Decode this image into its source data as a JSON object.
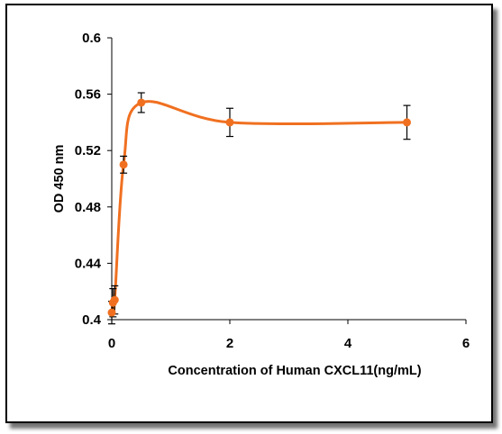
{
  "chart_data": {
    "type": "line",
    "title": "",
    "xlabel": "Concentration of Human CXCL11(ng/mL)",
    "ylabel": "OD 450 nm",
    "xlim": [
      0,
      6
    ],
    "ylim": [
      0.4,
      0.6
    ],
    "x_ticks": [
      "0",
      "2",
      "4",
      "6"
    ],
    "y_ticks": [
      "0.4",
      "0.44",
      "0.48",
      "0.52",
      "0.56",
      "0.6"
    ],
    "grid": false,
    "legend": "none",
    "series": [
      {
        "color": "#f07020",
        "curve": "smooth",
        "x": [
          0.0,
          0.02,
          0.05,
          0.2,
          0.5,
          2,
          5
        ],
        "y": [
          0.405,
          0.412,
          0.414,
          0.51,
          0.554,
          0.54,
          0.54
        ],
        "error": [
          0.008,
          0.01,
          0.01,
          0.006,
          0.007,
          0.01,
          0.012
        ]
      }
    ]
  }
}
